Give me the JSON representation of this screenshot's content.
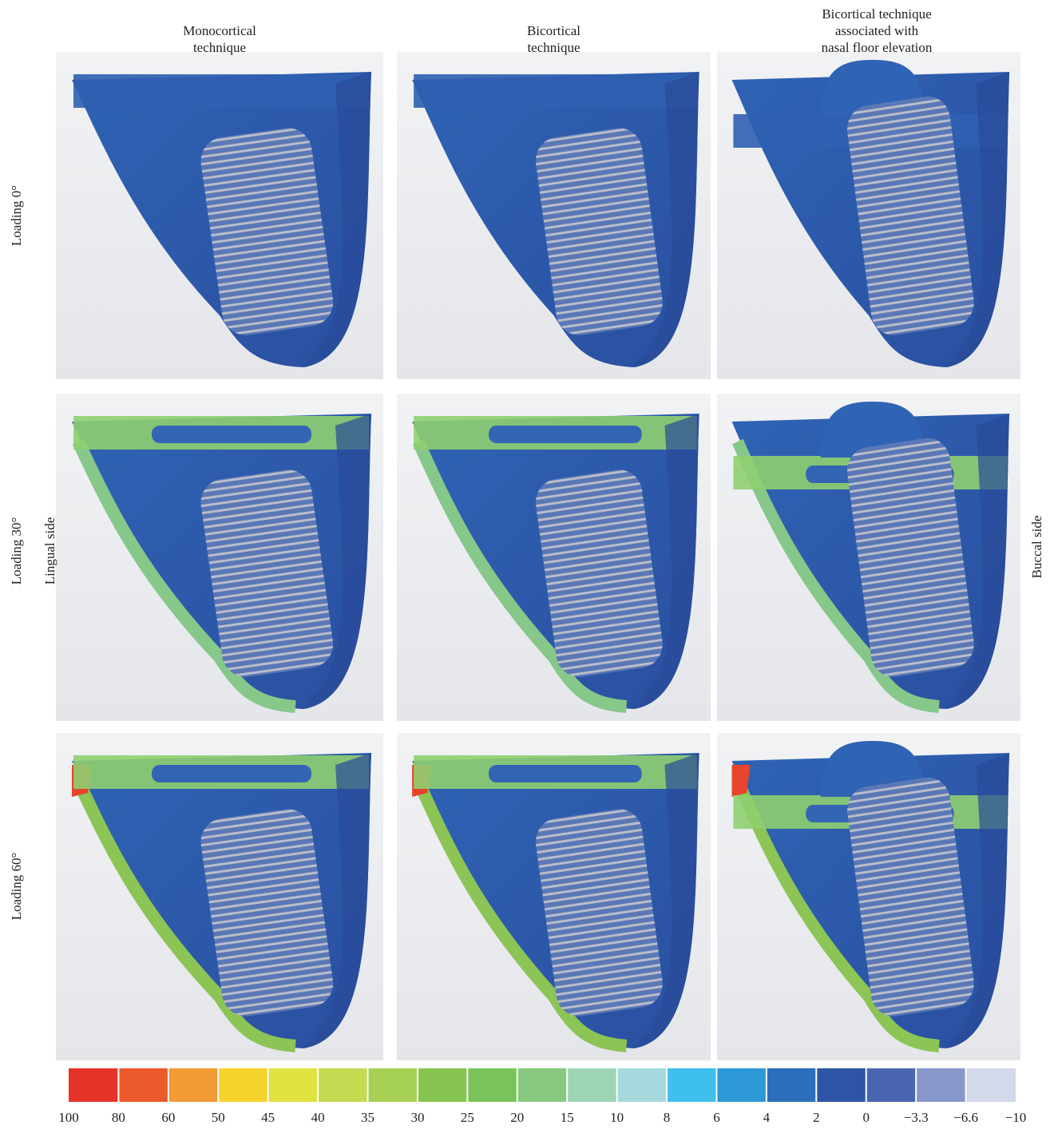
{
  "columns": [
    [
      "Monocortical",
      "technique"
    ],
    [
      "Bicortical",
      "technique"
    ],
    [
      "Bicortical technique",
      "associated with",
      "nasal floor elevation"
    ]
  ],
  "rows": [
    [
      "Loading 0°"
    ],
    [
      "Loading 30°",
      "Lingual side"
    ],
    [
      "Loading 60°"
    ]
  ],
  "side_label": "Buccal side",
  "colorbar": {
    "ticks": [
      100,
      80,
      60,
      50,
      45,
      40,
      35,
      30,
      25,
      20,
      15,
      10,
      8,
      6,
      4,
      2,
      0,
      {
        "value": -3.3,
        "label": "−3.3"
      },
      {
        "value": -6.6,
        "label": "−6.6"
      },
      {
        "value": -10,
        "label": "−10"
      }
    ],
    "colors": [
      "#e6332a",
      "#ec5a2b",
      "#f29a34",
      "#f6d22c",
      "#dfe23f",
      "#c2db50",
      "#a6d155",
      "#86c550",
      "#7ac35b",
      "#86c97f",
      "#9dd5b4",
      "#a6d9dd",
      "#3fbfeb",
      "#2c98d6",
      "#2b6fba",
      "#2c55a6",
      "#4a66b0",
      "#8797c9",
      "#d3d8ea"
    ]
  }
}
